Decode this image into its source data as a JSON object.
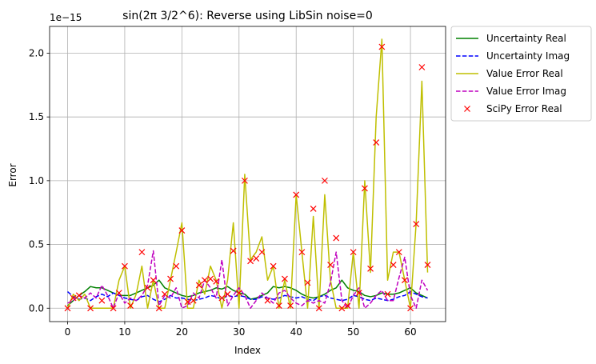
{
  "chart_data": {
    "type": "line",
    "title": "sin(2π 3/2^6): Reverse using LibSin noise=0",
    "xlabel": "Index",
    "ylabel": "Error",
    "y_offset_label": "1e−15",
    "y_scale_exponent": -15,
    "xlim": [
      -3.15,
      66.15
    ],
    "ylim": [
      -0.105,
      2.21
    ],
    "x_ticks": [
      0,
      10,
      20,
      30,
      40,
      50,
      60
    ],
    "y_ticks": [
      0.0,
      0.5,
      1.0,
      1.5,
      2.0
    ],
    "x_tick_labels": [
      "0",
      "10",
      "20",
      "30",
      "40",
      "50",
      "60"
    ],
    "y_tick_labels": [
      "0.0",
      "0.5",
      "1.0",
      "1.5",
      "2.0"
    ],
    "grid": true,
    "legend_position": "outside-right-top",
    "series": [
      {
        "name": "Uncertainty Real",
        "color": "#008000",
        "style": "solid",
        "marker": "none",
        "x": [
          0,
          1,
          2,
          3,
          4,
          5,
          6,
          7,
          8,
          9,
          10,
          11,
          12,
          13,
          14,
          15,
          16,
          17,
          18,
          19,
          20,
          21,
          22,
          23,
          24,
          25,
          26,
          27,
          28,
          29,
          30,
          31,
          32,
          33,
          34,
          35,
          36,
          37,
          38,
          39,
          40,
          41,
          42,
          43,
          44,
          45,
          46,
          47,
          48,
          49,
          50,
          51,
          52,
          53,
          54,
          55,
          56,
          57,
          58,
          59,
          60,
          61,
          62,
          63
        ],
        "y": [
          0.02,
          0.06,
          0.1,
          0.13,
          0.17,
          0.16,
          0.16,
          0.14,
          0.12,
          0.1,
          0.1,
          0.1,
          0.12,
          0.14,
          0.16,
          0.18,
          0.22,
          0.16,
          0.14,
          0.12,
          0.1,
          0.09,
          0.1,
          0.12,
          0.13,
          0.14,
          0.16,
          0.15,
          0.17,
          0.14,
          0.12,
          0.11,
          0.07,
          0.08,
          0.1,
          0.12,
          0.17,
          0.16,
          0.17,
          0.16,
          0.14,
          0.11,
          0.09,
          0.08,
          0.09,
          0.11,
          0.14,
          0.16,
          0.22,
          0.16,
          0.14,
          0.13,
          0.1,
          0.09,
          0.1,
          0.12,
          0.11,
          0.11,
          0.12,
          0.14,
          0.16,
          0.12,
          0.1,
          0.08
        ]
      },
      {
        "name": "Uncertainty Imag",
        "color": "#0000ff",
        "style": "dashed",
        "marker": "none",
        "x": [
          0,
          1,
          2,
          3,
          4,
          5,
          6,
          7,
          8,
          9,
          10,
          11,
          12,
          13,
          14,
          15,
          16,
          17,
          18,
          19,
          20,
          21,
          22,
          23,
          24,
          25,
          26,
          27,
          28,
          29,
          30,
          31,
          32,
          33,
          34,
          35,
          36,
          37,
          38,
          39,
          40,
          41,
          42,
          43,
          44,
          45,
          46,
          47,
          48,
          49,
          50,
          51,
          52,
          53,
          54,
          55,
          56,
          57,
          58,
          59,
          60,
          61,
          62,
          63
        ],
        "y": [
          0.13,
          0.09,
          0.07,
          0.08,
          0.06,
          0.09,
          0.11,
          0.09,
          0.12,
          0.1,
          0.08,
          0.07,
          0.06,
          0.09,
          0.1,
          0.07,
          0.05,
          0.07,
          0.1,
          0.08,
          0.08,
          0.07,
          0.06,
          0.07,
          0.08,
          0.1,
          0.09,
          0.07,
          0.1,
          0.09,
          0.1,
          0.09,
          0.07,
          0.07,
          0.09,
          0.08,
          0.07,
          0.08,
          0.1,
          0.09,
          0.08,
          0.09,
          0.07,
          0.06,
          0.09,
          0.1,
          0.08,
          0.07,
          0.06,
          0.07,
          0.1,
          0.09,
          0.07,
          0.06,
          0.08,
          0.07,
          0.06,
          0.07,
          0.09,
          0.1,
          0.13,
          0.11,
          0.09,
          0.08
        ]
      },
      {
        "name": "Value Error Real",
        "color": "#bfbf00",
        "style": "solid",
        "marker": "none",
        "x": [
          0,
          1,
          2,
          3,
          4,
          5,
          6,
          7,
          8,
          9,
          10,
          11,
          12,
          13,
          14,
          15,
          16,
          17,
          18,
          19,
          20,
          21,
          22,
          23,
          24,
          25,
          26,
          27,
          28,
          29,
          30,
          31,
          32,
          33,
          34,
          35,
          36,
          37,
          38,
          39,
          40,
          41,
          42,
          43,
          44,
          45,
          46,
          47,
          48,
          49,
          50,
          51,
          52,
          53,
          54,
          55,
          56,
          57,
          58,
          59,
          60,
          61,
          62,
          63
        ],
        "y": [
          0.0,
          0.11,
          0.06,
          0.11,
          0.0,
          0.0,
          0.0,
          0.0,
          0.0,
          0.22,
          0.33,
          0.0,
          0.11,
          0.33,
          0.0,
          0.22,
          0.0,
          0.0,
          0.22,
          0.44,
          0.67,
          0.0,
          0.0,
          0.22,
          0.11,
          0.33,
          0.22,
          0.0,
          0.22,
          0.67,
          0.0,
          1.05,
          0.38,
          0.44,
          0.56,
          0.22,
          0.33,
          0.0,
          0.22,
          0.0,
          0.89,
          0.44,
          0.0,
          0.72,
          0.0,
          0.89,
          0.22,
          0.0,
          0.0,
          0.0,
          0.44,
          0.0,
          1.0,
          0.28,
          1.5,
          2.11,
          0.22,
          0.44,
          0.44,
          0.22,
          0.0,
          0.67,
          1.78,
          0.28
        ]
      },
      {
        "name": "Value Error Imag",
        "color": "#bf00bf",
        "style": "dashed",
        "marker": "none",
        "x": [
          0,
          1,
          2,
          3,
          4,
          5,
          6,
          7,
          8,
          9,
          10,
          11,
          12,
          13,
          14,
          15,
          16,
          17,
          18,
          19,
          20,
          21,
          22,
          23,
          24,
          25,
          26,
          27,
          28,
          29,
          30,
          31,
          32,
          33,
          34,
          35,
          36,
          37,
          38,
          39,
          40,
          41,
          42,
          43,
          44,
          45,
          46,
          47,
          48,
          49,
          50,
          51,
          52,
          53,
          54,
          55,
          56,
          57,
          58,
          59,
          60,
          61,
          62,
          63
        ],
        "y": [
          0.04,
          0.06,
          0.1,
          0.08,
          0.12,
          0.08,
          0.18,
          0.1,
          0.0,
          0.12,
          0.04,
          0.08,
          0.06,
          0.1,
          0.18,
          0.45,
          0.02,
          0.1,
          0.08,
          0.16,
          0.0,
          0.02,
          0.12,
          0.08,
          0.22,
          0.16,
          0.08,
          0.38,
          0.02,
          0.1,
          0.16,
          0.1,
          0.0,
          0.06,
          0.12,
          0.08,
          0.04,
          0.12,
          0.14,
          0.08,
          0.04,
          0.02,
          0.06,
          0.04,
          0.06,
          0.04,
          0.2,
          0.44,
          0.06,
          0.0,
          0.1,
          0.16,
          0.0,
          0.04,
          0.1,
          0.14,
          0.06,
          0.06,
          0.24,
          0.4,
          0.1,
          0.0,
          0.22,
          0.14
        ]
      },
      {
        "name": "SciPy Error Real",
        "color": "#ff0000",
        "style": "none",
        "marker": "x",
        "x": [
          0,
          1,
          2,
          4,
          6,
          8,
          9,
          10,
          11,
          13,
          14,
          15,
          16,
          17,
          18,
          19,
          20,
          21,
          22,
          23,
          24,
          25,
          26,
          27,
          28,
          29,
          30,
          31,
          32,
          33,
          34,
          35,
          36,
          37,
          38,
          39,
          40,
          41,
          42,
          43,
          44,
          45,
          46,
          47,
          48,
          49,
          50,
          51,
          52,
          53,
          54,
          55,
          56,
          57,
          58,
          59,
          60,
          61,
          62,
          63
        ],
        "y": [
          0.0,
          0.08,
          0.1,
          0.0,
          0.06,
          0.0,
          0.12,
          0.33,
          0.02,
          0.44,
          0.16,
          0.22,
          0.0,
          0.11,
          0.23,
          0.33,
          0.61,
          0.05,
          0.06,
          0.18,
          0.22,
          0.23,
          0.21,
          0.08,
          0.11,
          0.45,
          0.12,
          1.0,
          0.37,
          0.39,
          0.44,
          0.06,
          0.33,
          0.02,
          0.23,
          0.02,
          0.89,
          0.44,
          0.2,
          0.78,
          0.0,
          1.0,
          0.34,
          0.55,
          0.0,
          0.02,
          0.44,
          0.12,
          0.94,
          0.31,
          1.3,
          2.05,
          0.11,
          0.34,
          0.44,
          0.22,
          0.0,
          0.66,
          1.89,
          0.34
        ]
      }
    ]
  }
}
